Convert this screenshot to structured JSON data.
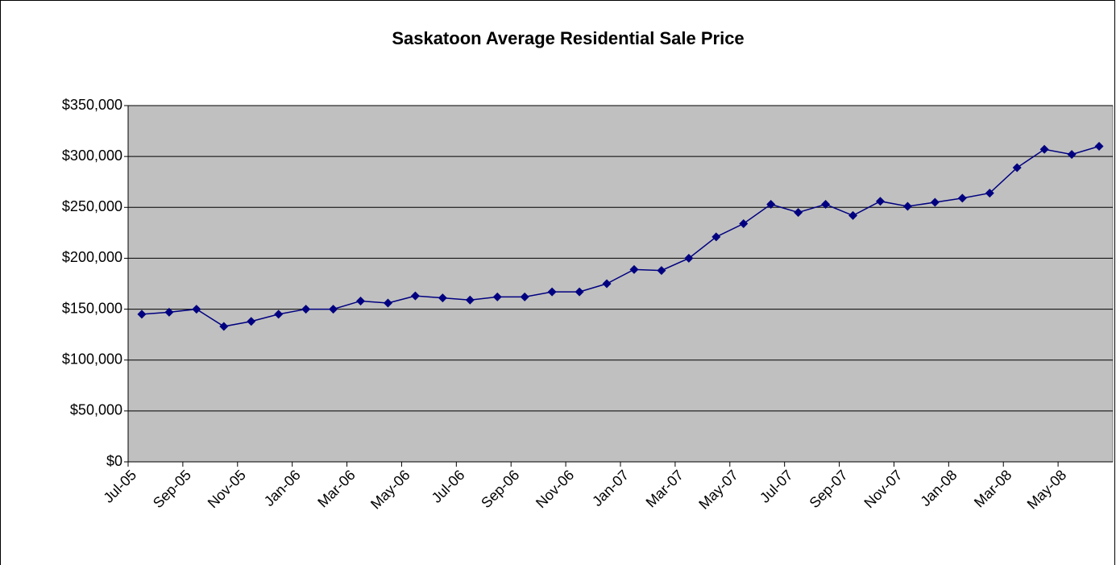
{
  "chart_data": {
    "type": "line",
    "title": "Saskatoon Average Residential Sale Price",
    "categories": [
      "Jul-05",
      null,
      "Sep-05",
      null,
      "Nov-05",
      null,
      "Jan-06",
      null,
      "Mar-06",
      null,
      "May-06",
      null,
      "Jul-06",
      null,
      "Sep-06",
      null,
      "Nov-06",
      null,
      "Jan-07",
      null,
      "Mar-07",
      null,
      "May-07",
      null,
      "Jul-07",
      null,
      "Sep-07",
      null,
      "Nov-07",
      null,
      "Jan-08",
      null,
      "Mar-08",
      null,
      "May-08",
      null
    ],
    "series": [
      {
        "color": "#000080",
        "values": [
          145000,
          147000,
          150000,
          133000,
          138000,
          145000,
          150000,
          150000,
          158000,
          156000,
          163000,
          161000,
          159000,
          162000,
          162000,
          167000,
          167000,
          175000,
          189000,
          188000,
          200000,
          221000,
          234000,
          253000,
          245000,
          253000,
          242000,
          256000,
          251000,
          255000,
          259000,
          264000,
          289000,
          307000,
          302000,
          310000
        ]
      }
    ],
    "ylim": [
      0,
      350000
    ],
    "yticks": [
      {
        "value": 0,
        "label": "$0"
      },
      {
        "value": 50000,
        "label": "$50,000"
      },
      {
        "value": 100000,
        "label": "$100,000"
      },
      {
        "value": 150000,
        "label": "$150,000"
      },
      {
        "value": 200000,
        "label": "$200,000"
      },
      {
        "value": 250000,
        "label": "$250,000"
      },
      {
        "value": 300000,
        "label": "$300,000"
      },
      {
        "value": 350000,
        "label": "$350,000"
      }
    ],
    "grid": true
  }
}
